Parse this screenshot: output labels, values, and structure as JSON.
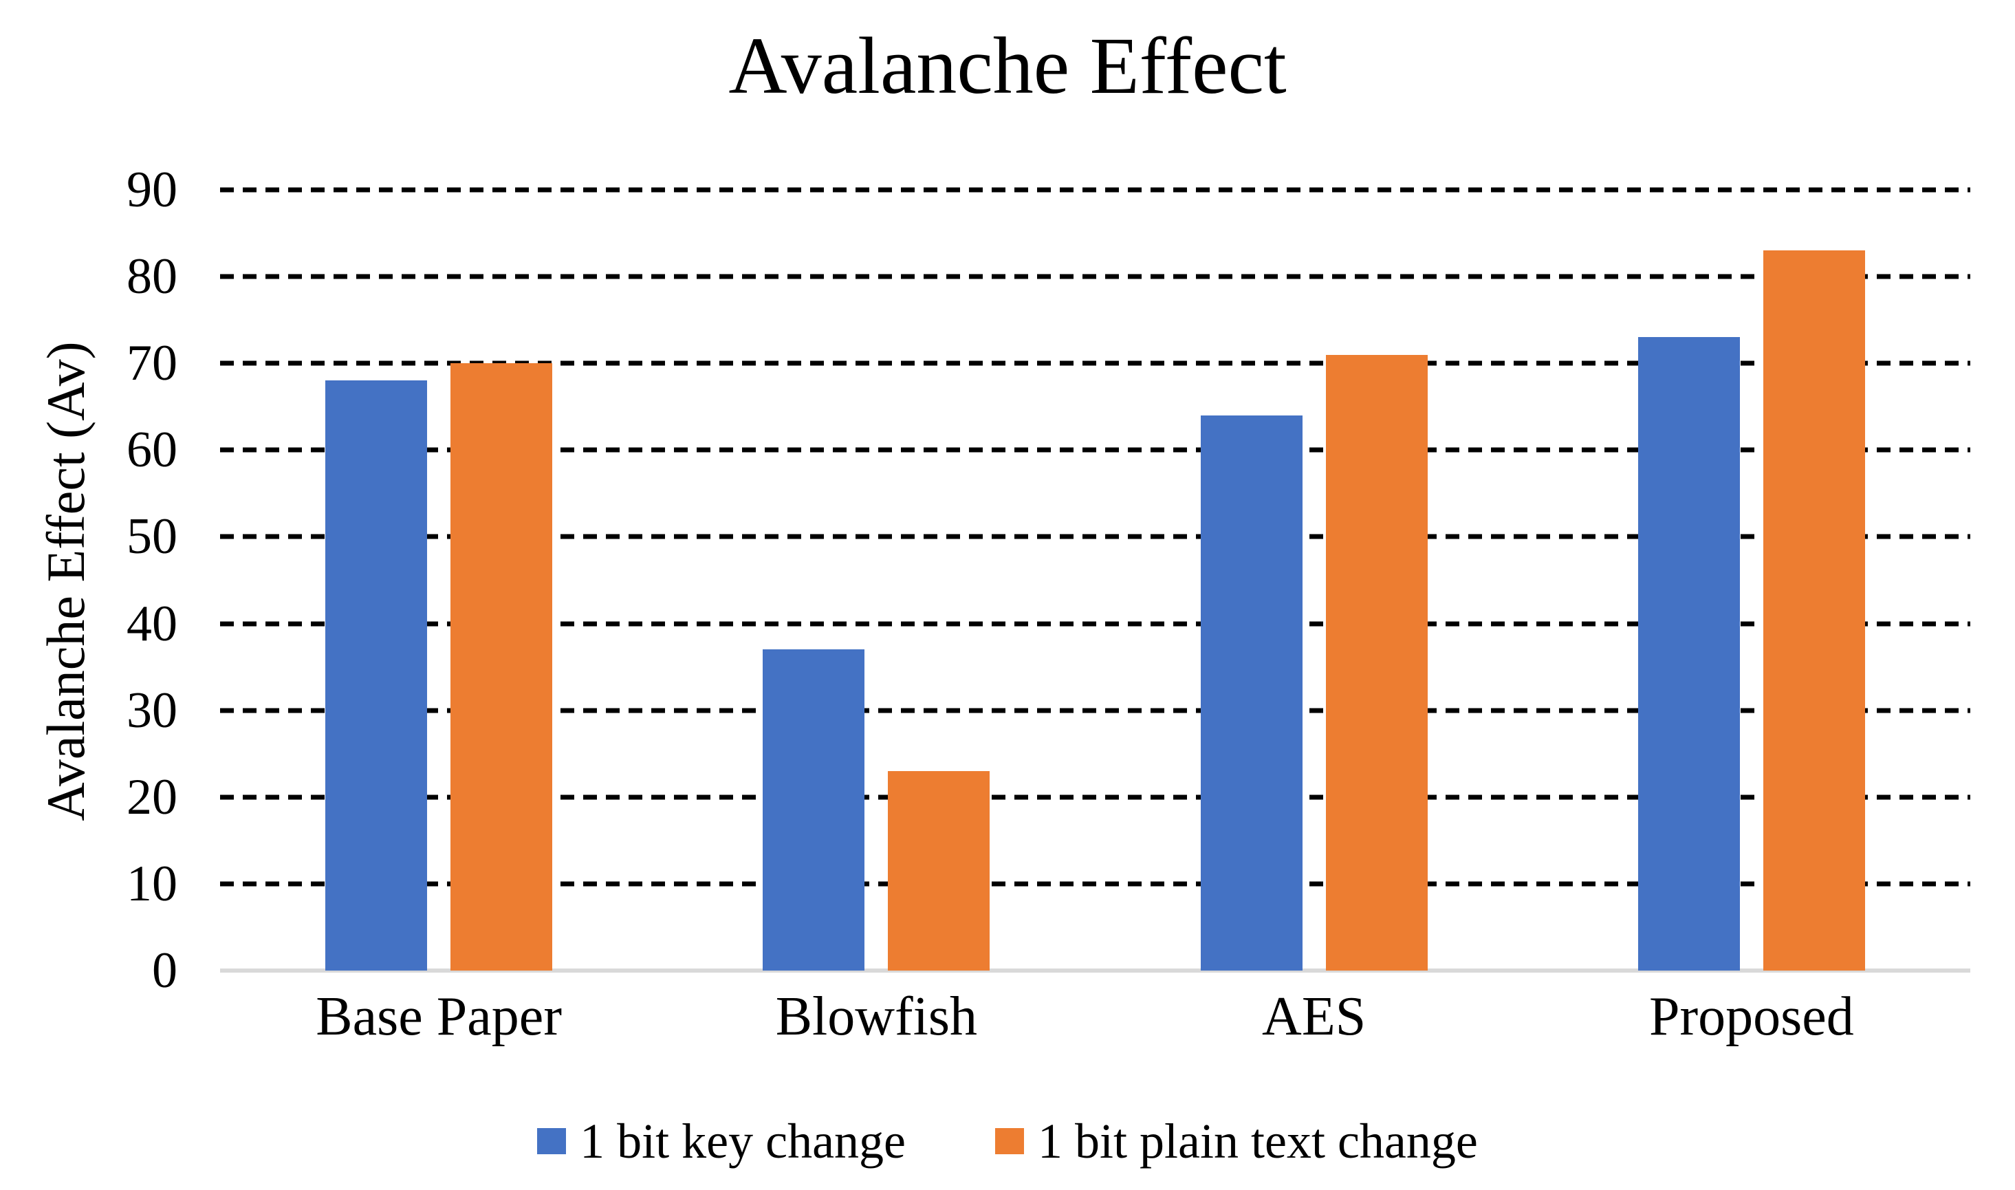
{
  "chart_data": {
    "type": "bar",
    "title": "Avalanche Effect",
    "xlabel": "",
    "ylabel": "Avalanche Effect (Av)",
    "ylim": [
      0,
      90
    ],
    "y_ticks": [
      0,
      10,
      20,
      30,
      40,
      50,
      60,
      70,
      80,
      90
    ],
    "grid": "horizontal-dashed",
    "legend_position": "bottom-center",
    "categories": [
      "Base Paper",
      "Blowfish",
      "AES",
      "Proposed"
    ],
    "series": [
      {
        "name": "1 bit key change",
        "color": "#4472C4",
        "values": [
          68,
          37,
          64,
          73
        ]
      },
      {
        "name": "1 bit plain text change",
        "color": "#ED7D31",
        "values": [
          70,
          23,
          71,
          83
        ]
      }
    ]
  },
  "colors": {
    "background": "#FFFFFF",
    "gridline": "#000000",
    "axis_baseline": "#D9D9D9",
    "text": "#000000",
    "series_blue": "#4472C4",
    "series_orange": "#ED7D31"
  }
}
